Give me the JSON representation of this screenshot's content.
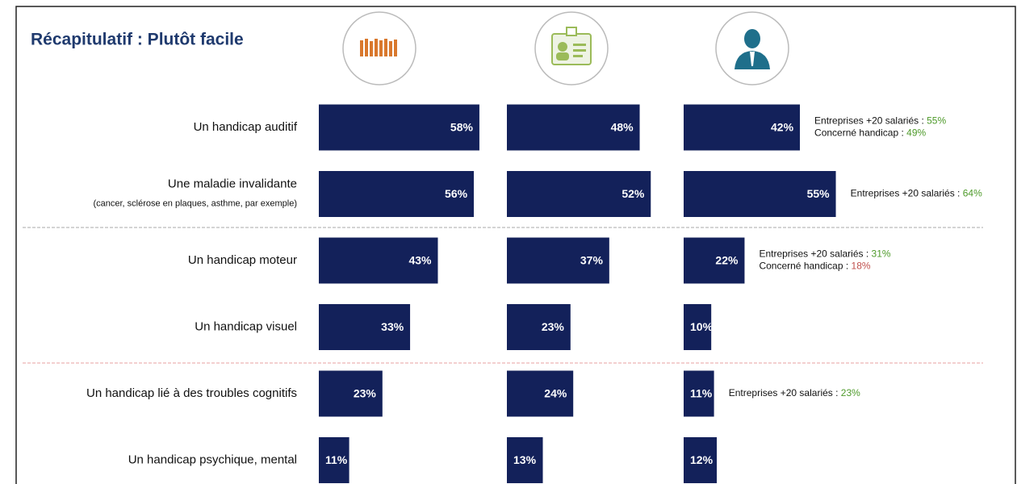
{
  "chart_data": {
    "type": "bar",
    "title": "Récapitulatif : Plutôt facile",
    "categories": [
      "Un handicap auditif",
      "Une maladie invalidante",
      "Un handicap moteur",
      "Un handicap visuel",
      "Un handicap lié à des troubles cognitifs",
      "Un handicap psychique, mental"
    ],
    "category_details": [
      null,
      "(cancer, sclérose en plaques, asthme, par exemple)",
      null,
      null,
      null,
      null
    ],
    "series": [
      {
        "color": "#13215a",
        "values": [
          58,
          56,
          43,
          33,
          23,
          11
        ],
        "value_labels": [
          "58%",
          "56%",
          "43%",
          "33%",
          "23%",
          "11%"
        ]
      },
      {
        "color": "#13215a",
        "values": [
          48,
          52,
          37,
          23,
          24,
          13
        ],
        "value_labels": [
          "48%",
          "52%",
          "37%",
          "23%",
          "24%",
          "13%"
        ]
      },
      {
        "color": "#13215a",
        "values": [
          42,
          55,
          22,
          10,
          11,
          12
        ],
        "value_labels": [
          "42%",
          "55%",
          "22%",
          "10%",
          "11%",
          "12%"
        ]
      }
    ],
    "annotations": [
      {
        "category": 0,
        "lines": [
          {
            "text": "Entreprises +20 salariés :",
            "value": "55%",
            "color": "#4e9a2a"
          },
          {
            "text": "Concerné handicap :",
            "value": "49%",
            "color": "#4e9a2a"
          }
        ]
      },
      {
        "category": 1,
        "lines": [
          {
            "text": "Entreprises +20 salariés :",
            "value": "64%",
            "color": "#4e9a2a"
          }
        ]
      },
      {
        "category": 2,
        "lines": [
          {
            "text": "Entreprises +20 salariés :",
            "value": "31%",
            "color": "#4e9a2a"
          },
          {
            "text": "Concerné handicap :",
            "value": "18%",
            "color": "#c0504d"
          }
        ]
      },
      {
        "category": 4,
        "lines": [
          {
            "text": "Entreprises +20 salariés :",
            "value": "23%",
            "color": "#4e9a2a"
          }
        ]
      }
    ]
  }
}
